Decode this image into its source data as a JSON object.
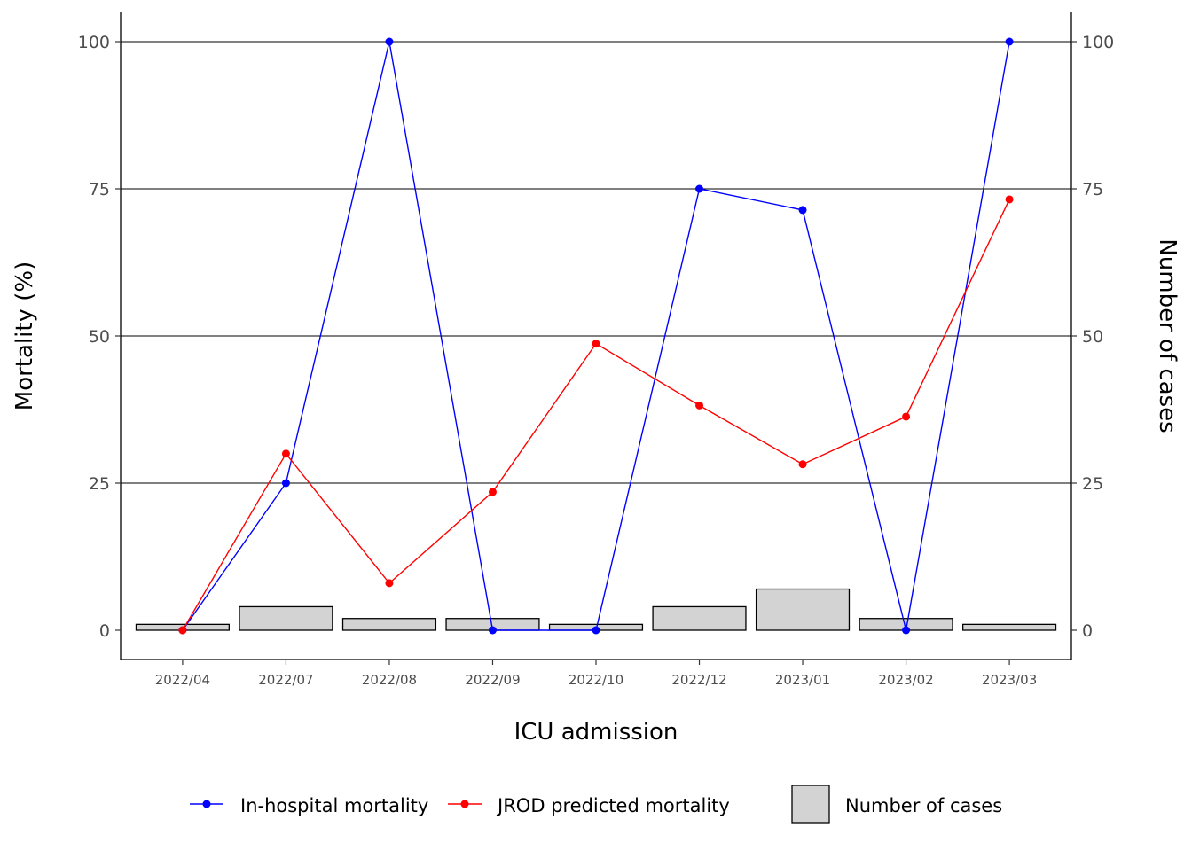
{
  "chart_data": {
    "type": "line",
    "xlabel": "ICU admission",
    "ylabel": "Mortality (%)",
    "y2label": "Number of cases",
    "ylim": [
      0,
      100
    ],
    "y2lim": [
      0,
      100
    ],
    "yticks": [
      "0",
      "25",
      "50",
      "75",
      "100"
    ],
    "y2ticks": [
      "0",
      "25",
      "50",
      "75",
      "100"
    ],
    "categories": [
      "2022/04",
      "2022/07",
      "2022/08",
      "2022/09",
      "2022/10",
      "2022/12",
      "2023/01",
      "2023/02",
      "2023/03"
    ],
    "series": [
      {
        "name": "In-hospital mortality",
        "kind": "line",
        "axis": "left",
        "color": "#0000ff",
        "values": [
          0,
          25,
          100,
          0,
          0,
          75,
          71.4,
          0,
          100
        ]
      },
      {
        "name": "JROD predicted mortality",
        "kind": "line",
        "axis": "left",
        "color": "#ff0000",
        "values": [
          0,
          30,
          8,
          23.5,
          48.7,
          38.2,
          28.2,
          36.3,
          73.2
        ]
      },
      {
        "name": "Number of cases",
        "kind": "bar",
        "axis": "right",
        "color": "#d3d3d3",
        "values": [
          1,
          4,
          2,
          2,
          1,
          4,
          7,
          2,
          1
        ]
      }
    ],
    "grid": "horizontal major lines",
    "legend_position": "bottom"
  }
}
